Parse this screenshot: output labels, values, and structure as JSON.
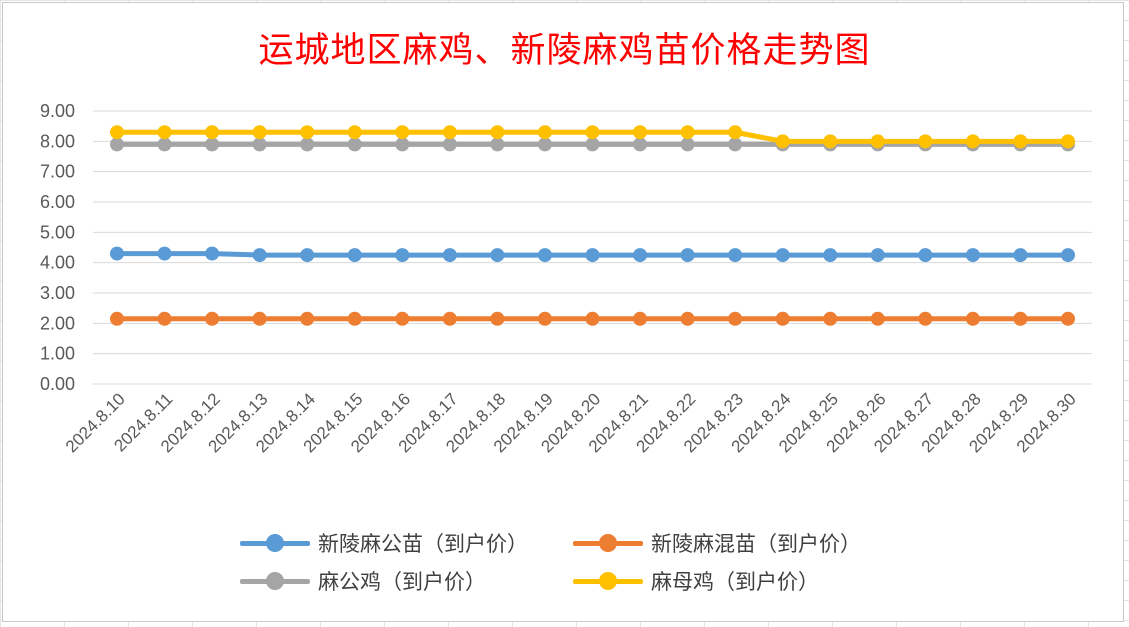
{
  "chart_data": {
    "type": "line",
    "title": "运城地区麻鸡、新陵麻鸡苗价格走势图",
    "categories": [
      "2024.8.10",
      "2024.8.11",
      "2024.8.12",
      "2024.8.13",
      "2024.8.14",
      "2024.8.15",
      "2024.8.16",
      "2024.8.17",
      "2024.8.18",
      "2024.8.19",
      "2024.8.20",
      "2024.8.21",
      "2024.8.22",
      "2024.8.23",
      "2024.8.24",
      "2024.8.25",
      "2024.8.26",
      "2024.8.27",
      "2024.8.28",
      "2024.8.29",
      "2024.8.30"
    ],
    "yticks": [
      "0.00",
      "1.00",
      "2.00",
      "3.00",
      "4.00",
      "5.00",
      "6.00",
      "7.00",
      "8.00",
      "9.00"
    ],
    "ylim": [
      0,
      9
    ],
    "grid": true,
    "legend_position": "bottom",
    "series": [
      {
        "name": "新陵麻公苗（到户价）",
        "color": "#5b9bd5",
        "values": [
          4.3,
          4.3,
          4.3,
          4.25,
          4.25,
          4.25,
          4.25,
          4.25,
          4.25,
          4.25,
          4.25,
          4.25,
          4.25,
          4.25,
          4.25,
          4.25,
          4.25,
          4.25,
          4.25,
          4.25,
          4.25
        ]
      },
      {
        "name": "新陵麻混苗（到户价）",
        "color": "#ed7d31",
        "values": [
          2.15,
          2.15,
          2.15,
          2.15,
          2.15,
          2.15,
          2.15,
          2.15,
          2.15,
          2.15,
          2.15,
          2.15,
          2.15,
          2.15,
          2.15,
          2.15,
          2.15,
          2.15,
          2.15,
          2.15,
          2.15
        ]
      },
      {
        "name": "麻公鸡（到户价）",
        "color": "#a5a5a5",
        "values": [
          7.9,
          7.9,
          7.9,
          7.9,
          7.9,
          7.9,
          7.9,
          7.9,
          7.9,
          7.9,
          7.9,
          7.9,
          7.9,
          7.9,
          7.9,
          7.9,
          7.9,
          7.9,
          7.9,
          7.9,
          7.9
        ]
      },
      {
        "name": "麻母鸡（到户价）",
        "color": "#ffc000",
        "values": [
          8.3,
          8.3,
          8.3,
          8.3,
          8.3,
          8.3,
          8.3,
          8.3,
          8.3,
          8.3,
          8.3,
          8.3,
          8.3,
          8.3,
          8.0,
          8.0,
          8.0,
          8.0,
          8.0,
          8.0,
          8.0
        ]
      }
    ]
  }
}
